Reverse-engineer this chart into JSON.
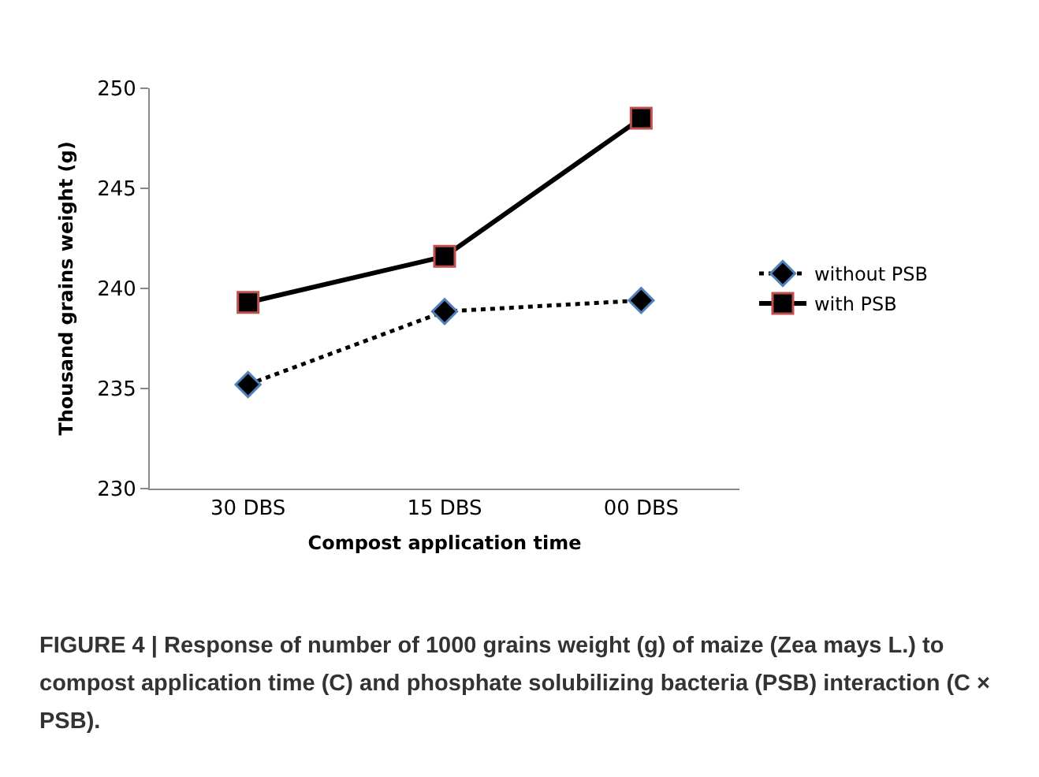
{
  "chart_data": {
    "type": "line",
    "xlabel": "Compost application time",
    "ylabel": "Thousand grains weight (g)",
    "categories": [
      "30 DBS",
      "15 DBS",
      "00 DBS"
    ],
    "series": [
      {
        "name": "without PSB",
        "color": "#000000",
        "values": [
          235.2,
          238.85,
          239.4
        ],
        "marker": "diamond",
        "line_style": "dotted"
      },
      {
        "name": "with PSB",
        "color": "#000000",
        "values": [
          239.3,
          241.6,
          248.5
        ],
        "marker": "square",
        "line_style": "solid"
      }
    ],
    "ylim": [
      230,
      250
    ],
    "yticks": [
      230,
      235,
      240,
      245,
      250
    ],
    "grid": false,
    "legend": "right",
    "annotations": [
      "FIGURE 4 | Response of number of 1000 grains weight (g) of maize (Zea mays L.) to compost application time (C) and phosphate solubilizing bacteria (PSB) interaction (C × PSB)."
    ]
  }
}
